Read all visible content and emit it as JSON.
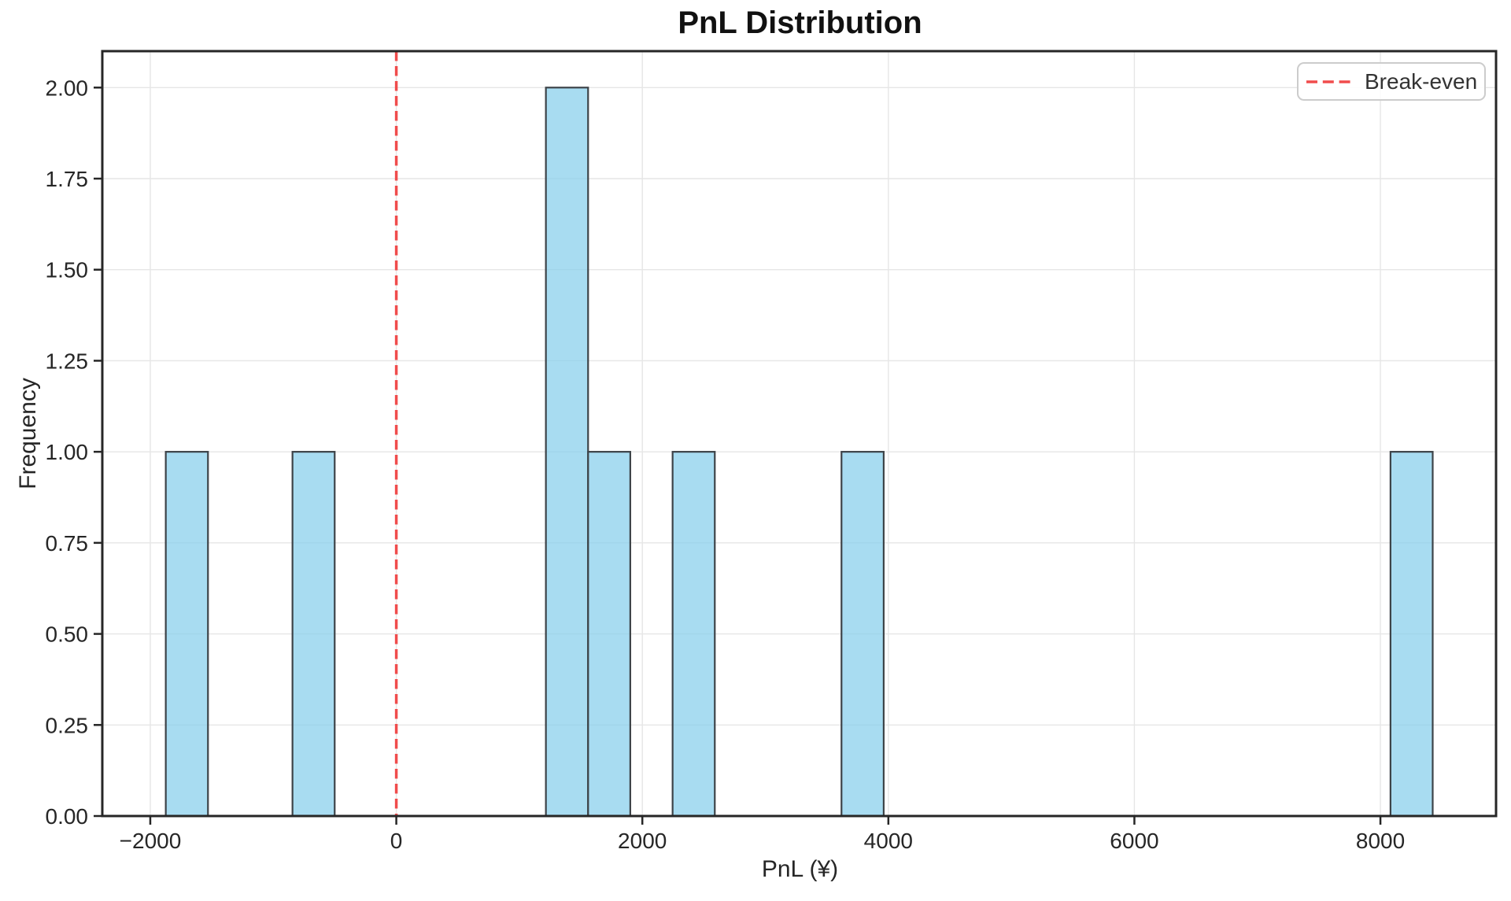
{
  "figure": {
    "title": "PnL Distribution",
    "xlabel": "PnL (¥)",
    "ylabel": "Frequency",
    "legend": {
      "label": "Break-even"
    }
  },
  "chart_data": {
    "type": "bar",
    "subtype": "histogram",
    "title": "PnL Distribution",
    "xlabel": "PnL (¥)",
    "ylabel": "Frequency",
    "grid": true,
    "legend_position": "upper right",
    "legend": [
      {
        "label": "Break-even",
        "style": "dashed-vertical-line",
        "x": 0
      }
    ],
    "xlim": [
      -2390,
      8940
    ],
    "ylim": [
      0,
      2.1
    ],
    "xticks": [
      -2000,
      0,
      2000,
      4000,
      6000,
      8000
    ],
    "xtick_labels": [
      "−2000",
      "0",
      "2000",
      "4000",
      "6000",
      "8000"
    ],
    "yticks": [
      0,
      0.25,
      0.5,
      0.75,
      1,
      1.25,
      1.5,
      1.75,
      2
    ],
    "ytick_labels": [
      "0.00",
      "0.25",
      "0.50",
      "0.75",
      "1.00",
      "1.25",
      "1.50",
      "1.75",
      "2.00"
    ],
    "bins": [
      {
        "from": -1874,
        "to": -1531,
        "count": 1
      },
      {
        "from": -844,
        "to": -501,
        "count": 1
      },
      {
        "from": 1216,
        "to": 1559,
        "count": 2
      },
      {
        "from": 1559,
        "to": 1902,
        "count": 1
      },
      {
        "from": 2246,
        "to": 2589,
        "count": 1
      },
      {
        "from": 3619,
        "to": 3962,
        "count": 1
      },
      {
        "from": 8082,
        "to": 8425,
        "count": 1
      }
    ],
    "break_even_x": 0,
    "colors": {
      "bar_fill": "#87CEEB",
      "bar_fill_opacity": 0.72,
      "bar_edge": "#3d4348",
      "break_even": "#f04c4c",
      "grid": "#e6e6e6",
      "axis": "#262626",
      "text": "#262626"
    }
  }
}
